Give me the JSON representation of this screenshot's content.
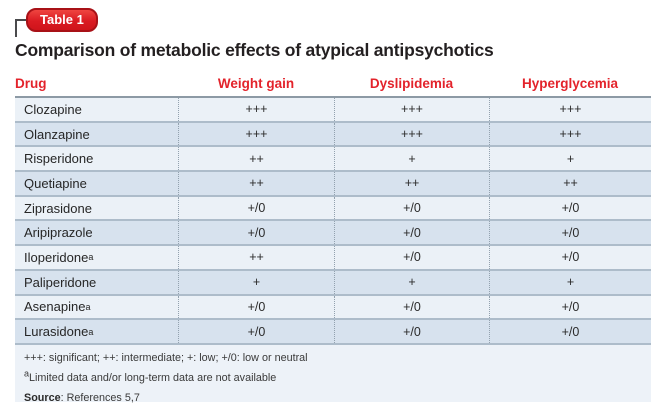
{
  "badge": {
    "label": "Table 1"
  },
  "title": "Comparison of metabolic effects of atypical antipsychotics",
  "table": {
    "columns": [
      "Drug",
      "Weight gain",
      "Dyslipidemia",
      "Hyperglycemia"
    ],
    "rows": [
      {
        "drug": "Clozapine",
        "sup": "",
        "weight_gain": "+++",
        "dyslipidemia": "+++",
        "hyperglycemia": "+++"
      },
      {
        "drug": "Olanzapine",
        "sup": "",
        "weight_gain": "+++",
        "dyslipidemia": "+++",
        "hyperglycemia": "+++"
      },
      {
        "drug": "Risperidone",
        "sup": "",
        "weight_gain": "++",
        "dyslipidemia": "+",
        "hyperglycemia": "+"
      },
      {
        "drug": "Quetiapine",
        "sup": "",
        "weight_gain": "++",
        "dyslipidemia": "++",
        "hyperglycemia": "++"
      },
      {
        "drug": "Ziprasidone",
        "sup": "",
        "weight_gain": "+/0",
        "dyslipidemia": "+/0",
        "hyperglycemia": "+/0"
      },
      {
        "drug": "Aripiprazole",
        "sup": "",
        "weight_gain": "+/0",
        "dyslipidemia": "+/0",
        "hyperglycemia": "+/0"
      },
      {
        "drug": "Iloperidone",
        "sup": "a",
        "weight_gain": "++",
        "dyslipidemia": "+/0",
        "hyperglycemia": "+/0"
      },
      {
        "drug": "Paliperidone",
        "sup": "",
        "weight_gain": "+",
        "dyslipidemia": "+",
        "hyperglycemia": "+"
      },
      {
        "drug": "Asenapine",
        "sup": "a",
        "weight_gain": "+/0",
        "dyslipidemia": "+/0",
        "hyperglycemia": "+/0"
      },
      {
        "drug": "Lurasidone",
        "sup": "a",
        "weight_gain": "+/0",
        "dyslipidemia": "+/0",
        "hyperglycemia": "+/0"
      }
    ]
  },
  "footnotes": {
    "legend": "+++: significant; ++: intermediate; +: low; +/0: low or neutral",
    "limited_data_sup": "a",
    "limited_data": "Limited data and/or long-term data are not available",
    "source_label": "Source",
    "source_rest": ": References 5,7"
  },
  "colors": {
    "accent_red": "#e3232b",
    "badge_border_red": "#a81117",
    "row_light": "#ebf1f7",
    "row_dark": "#d7e2ee",
    "title_text": "#231f20"
  }
}
